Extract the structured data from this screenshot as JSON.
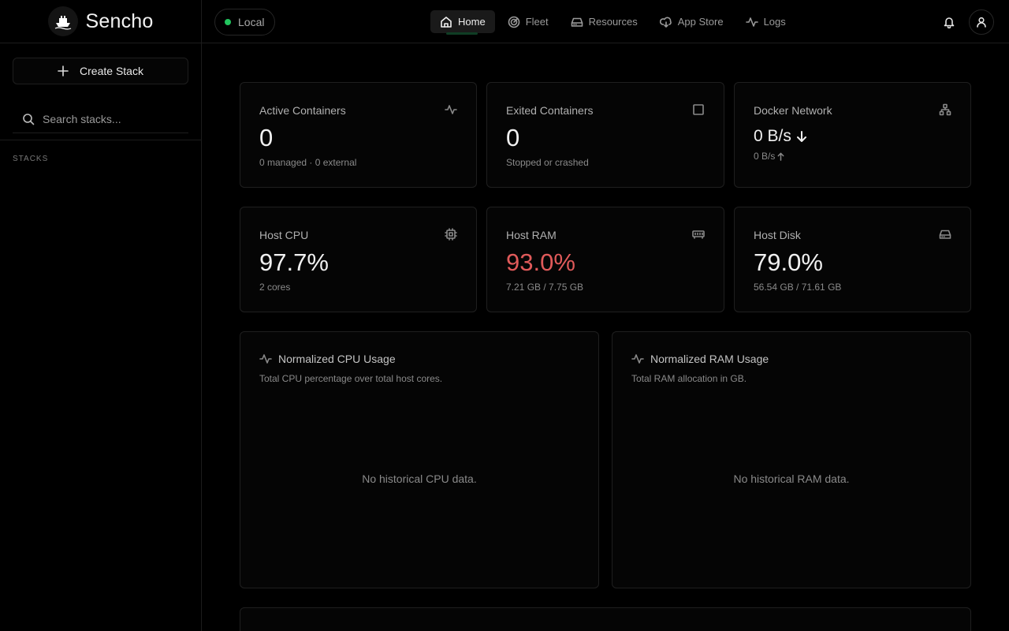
{
  "app": {
    "name": "Sencho"
  },
  "sidebar": {
    "create_label": "Create Stack",
    "search_placeholder": "Search stacks...",
    "stacks_heading": "STACKS"
  },
  "topbar": {
    "node_label": "Local",
    "node_status_color": "#22c55e",
    "nav": [
      {
        "label": "Home",
        "icon": "home-icon",
        "active": true
      },
      {
        "label": "Fleet",
        "icon": "radar-icon"
      },
      {
        "label": "Resources",
        "icon": "hard-drive-icon"
      },
      {
        "label": "App Store",
        "icon": "cloud-download-icon"
      },
      {
        "label": "Logs",
        "icon": "activity-icon"
      }
    ]
  },
  "stats": {
    "active_containers": {
      "label": "Active Containers",
      "value": "0",
      "sub": "0 managed · 0 external"
    },
    "exited_containers": {
      "label": "Exited Containers",
      "value": "0",
      "sub": "Stopped or crashed"
    },
    "docker_network": {
      "label": "Docker Network",
      "rx": "0 B/s",
      "tx": "0 B/s"
    },
    "host_cpu": {
      "label": "Host CPU",
      "value": "97.7%",
      "sub": "2 cores"
    },
    "host_ram": {
      "label": "Host RAM",
      "value": "93.0%",
      "sub": "7.21 GB / 7.75 GB",
      "alert_color": "#e05a5a"
    },
    "host_disk": {
      "label": "Host Disk",
      "value": "79.0%",
      "sub": "56.54 GB / 71.61 GB"
    }
  },
  "charts": {
    "cpu": {
      "title": "Normalized CPU Usage",
      "desc": "Total CPU percentage over total host cores.",
      "empty": "No historical CPU data."
    },
    "ram": {
      "title": "Normalized RAM Usage",
      "desc": "Total RAM allocation in GB.",
      "empty": "No historical RAM data."
    }
  }
}
